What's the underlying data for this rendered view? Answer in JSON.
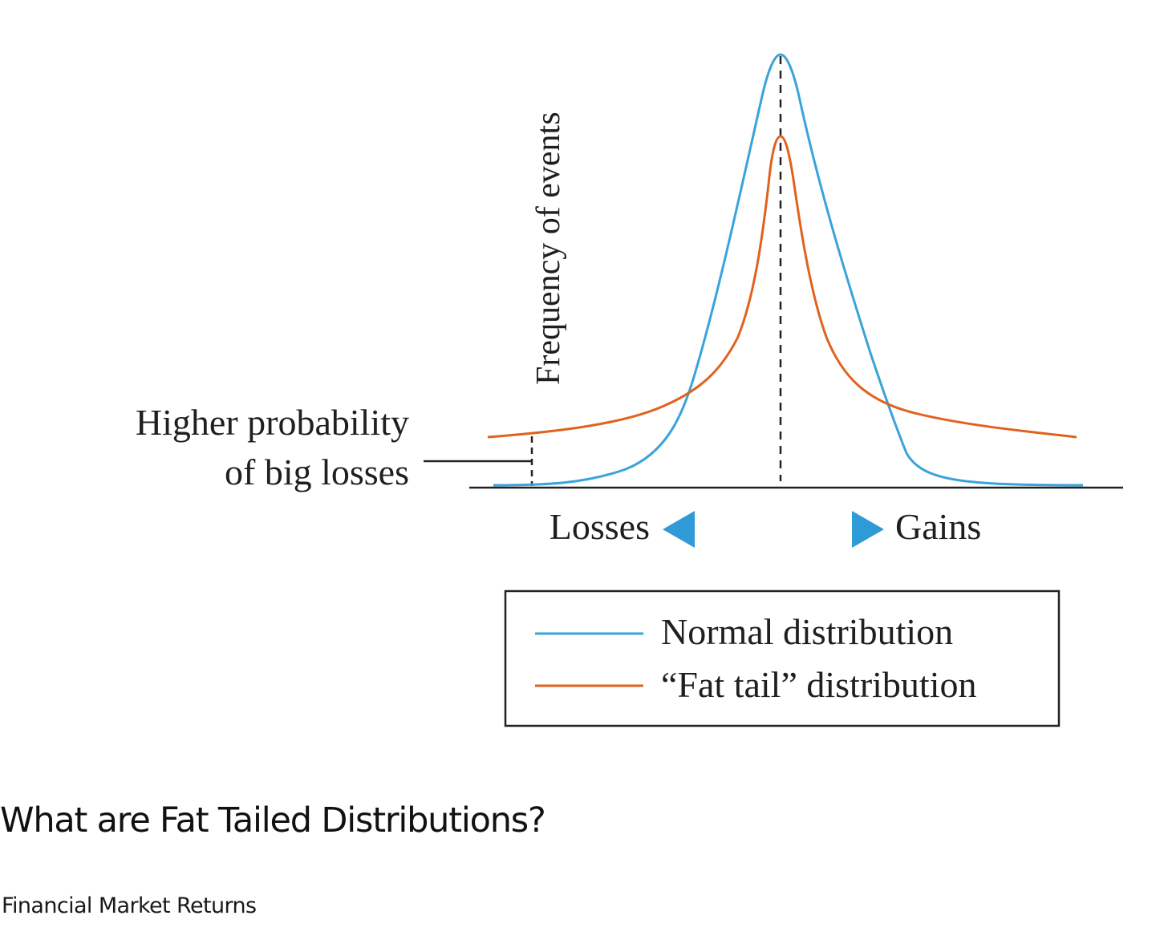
{
  "figure": {
    "y_axis_label": "Frequency of events",
    "annotation_line1": "Higher probability",
    "annotation_line2": "of big losses",
    "left_label": "Losses",
    "right_label": "Gains",
    "legend": [
      {
        "label": "Normal distribution",
        "color": "#3aa3d9"
      },
      {
        "label": "“Fat tail” distribution",
        "color": "#e0621e"
      }
    ],
    "arrow_color": "#2f9bd6",
    "axis_color": "#222222"
  },
  "article": {
    "heading": "What are Fat Tailed Distributions?",
    "subheading": "Financial Market Returns"
  }
}
